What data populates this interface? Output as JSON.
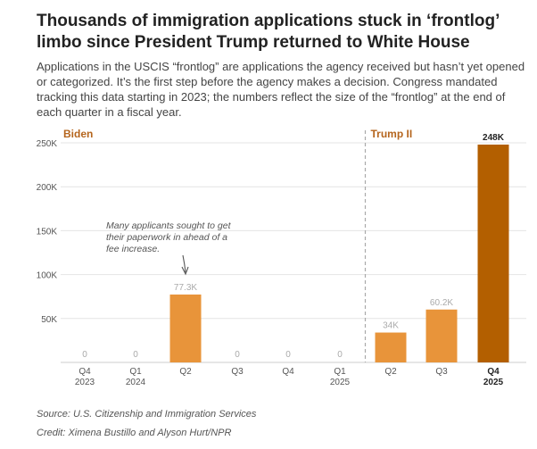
{
  "header": {
    "title": "Thousands of immigration applications stuck in ‘frontlog’ limbo since President Trump returned to White House",
    "subtitle": "Applications in the USCIS “frontlog” are applications the agency received but hasn’t yet opened or categorized. It’s the first step before the agency makes a decision. Congress mandated tracking this data starting in 2023; the numbers reflect the size of the “frontlog” at the end of each quarter in a fiscal year."
  },
  "footer": {
    "source": "Source: U.S. Citizenship and Immigration Services",
    "credit": "Credit: Ximena Bustillo and Alyson Hurt/NPR"
  },
  "chart_data": {
    "type": "bar",
    "categories": [
      [
        "Q4",
        "2023"
      ],
      [
        "Q1",
        "2024"
      ],
      [
        "Q2"
      ],
      [
        "Q3"
      ],
      [
        "Q4"
      ],
      [
        "Q1",
        "2025"
      ],
      [
        "Q2"
      ],
      [
        "Q3"
      ],
      [
        "Q4",
        "2025"
      ]
    ],
    "values": [
      0,
      0,
      77300,
      0,
      0,
      0,
      34000,
      60200,
      248000
    ],
    "value_labels": [
      "0",
      "0",
      "77.3K",
      "0",
      "0",
      "0",
      "34K",
      "60.2K",
      "248K"
    ],
    "ylim": [
      0,
      250000
    ],
    "yticks": [
      50000,
      100000,
      150000,
      200000,
      250000
    ],
    "ytick_labels": [
      "50K",
      "100K",
      "150K",
      "200K",
      "250K"
    ],
    "grid": true,
    "eras": [
      {
        "label": "Biden",
        "start_index": 0
      },
      {
        "label": "Trump II",
        "start_index": 6
      }
    ],
    "colors": {
      "bar": "#e8943a",
      "highlight": "#b35f00",
      "era_label": "#b5651d",
      "divider": "#aaaaaa"
    },
    "highlight_index": 8,
    "annotation": {
      "lines": [
        "Many applicants sought to get",
        "their paperwork in ahead of a",
        "fee increase."
      ],
      "target_index": 2
    }
  }
}
